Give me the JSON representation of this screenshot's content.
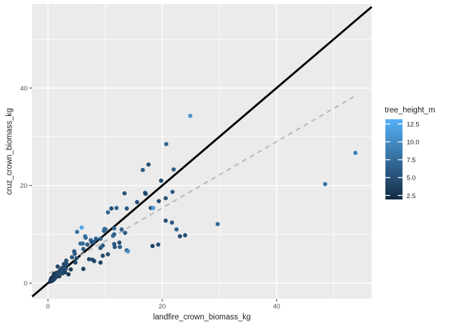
{
  "chart_data": {
    "type": "scatter",
    "title": "",
    "xlabel": "landfire_crown_biomass_kg",
    "ylabel": "cruz_crown_biomass_kg",
    "xlim": [
      -2.8,
      56.7
    ],
    "ylim": [
      -3.2,
      57.2
    ],
    "grid": "on",
    "legend_position": "right",
    "x_ticks": {
      "values": [
        0,
        20,
        40
      ],
      "labels": [
        "0",
        "20",
        "40"
      ],
      "minor": [
        10,
        30,
        50
      ]
    },
    "y_ticks": {
      "values": [
        0,
        20,
        40
      ],
      "labels": [
        "0",
        "20",
        "40"
      ],
      "minor": [
        10,
        30,
        50
      ]
    },
    "theme": {
      "panel_bg": "#EBEBEB",
      "grid_color": "#FFFFFF",
      "tick_label_color": "#4D4D4D",
      "tick_mark_color": "#333333"
    },
    "color_scale": {
      "label": "tree_height_m",
      "low": "#132B43",
      "high": "#56B1F7",
      "domain": [
        1.95,
        13.15
      ],
      "ticks": [
        {
          "value": 12.5,
          "label": "12.5"
        },
        {
          "value": 10.0,
          "label": "10.0"
        },
        {
          "value": 7.5,
          "label": "7.5"
        },
        {
          "value": 5.0,
          "label": "5.0"
        },
        {
          "value": 2.5,
          "label": "2.5"
        }
      ]
    },
    "lines": [
      {
        "name": "one-to-one line",
        "slope": 1,
        "intercept": 0,
        "style": "solid",
        "color": "#000000",
        "width": 3
      },
      {
        "name": "linear fit",
        "slope": 0.68,
        "intercept": 1.8,
        "style": "dashed",
        "color": "#BDBDBD",
        "width": 2.4,
        "x_range": [
          0.3,
          53.5
        ]
      }
    ],
    "points_format": [
      "landfire_crown_biomass_kg",
      "cruz_crown_biomass_kg",
      "tree_height_m"
    ],
    "points": [
      [
        0.4,
        0.3,
        2.5
      ],
      [
        0.5,
        0.7,
        2.8
      ],
      [
        0.6,
        0.4,
        3
      ],
      [
        0.6,
        1,
        2.6
      ],
      [
        0.7,
        0.9,
        2.6
      ],
      [
        0.8,
        0.5,
        3.2
      ],
      [
        0.8,
        1.2,
        2.9
      ],
      [
        0.9,
        0.7,
        3.4
      ],
      [
        0.9,
        1.3,
        3
      ],
      [
        1,
        1,
        3.1
      ],
      [
        1,
        1.5,
        2.7
      ],
      [
        1.1,
        0.8,
        3.6
      ],
      [
        1.1,
        1.9,
        2.8
      ],
      [
        1.2,
        1.3,
        3.3
      ],
      [
        1.2,
        1.8,
        2.9
      ],
      [
        1.3,
        1.1,
        3.8
      ],
      [
        1.4,
        1.6,
        3.5
      ],
      [
        1.5,
        1.3,
        4
      ],
      [
        1.5,
        2.1,
        3.2
      ],
      [
        1.6,
        1.8,
        3.7
      ],
      [
        1.7,
        1.5,
        4.2
      ],
      [
        1.7,
        3.4,
        4.5
      ],
      [
        1.8,
        2.2,
        3.9
      ],
      [
        1.9,
        1.7,
        4.4
      ],
      [
        2,
        1.4,
        3.6
      ],
      [
        2,
        2.4,
        4.1
      ],
      [
        2.1,
        2,
        4.6
      ],
      [
        2.2,
        2.7,
        4.3
      ],
      [
        2.4,
        2.3,
        4.8
      ],
      [
        2.4,
        2.9,
        4
      ],
      [
        2.5,
        3.1,
        4.5
      ],
      [
        2.6,
        2,
        4.2
      ],
      [
        2.7,
        2.6,
        5
      ],
      [
        2.8,
        3.9,
        4.4
      ],
      [
        2.9,
        3.4,
        4.7
      ],
      [
        3,
        2.2,
        4
      ],
      [
        3.1,
        2.9,
        5.2
      ],
      [
        3.2,
        4.6,
        5
      ],
      [
        3.3,
        3.8,
        4.9
      ],
      [
        3.6,
        1.8,
        3
      ],
      [
        4,
        2.8,
        3.5
      ],
      [
        4.2,
        5.3,
        5.5
      ],
      [
        4.6,
        6.5,
        5.5
      ],
      [
        4.7,
        6,
        6
      ],
      [
        4.8,
        4.2,
        4.5
      ],
      [
        5,
        5.1,
        5
      ],
      [
        5.1,
        10.5,
        8
      ],
      [
        5.7,
        8.1,
        7
      ],
      [
        5.9,
        11.4,
        12.5
      ],
      [
        6.1,
        8.1,
        7.5
      ],
      [
        6.2,
        2.9,
        3.5
      ],
      [
        6.2,
        7,
        6
      ],
      [
        6.5,
        9.6,
        8.5
      ],
      [
        6.6,
        9.3,
        7
      ],
      [
        6.9,
        7.9,
        6
      ],
      [
        7.2,
        4.9,
        4.5
      ],
      [
        7.5,
        8.8,
        6.5
      ],
      [
        7.7,
        8.3,
        6
      ],
      [
        7.8,
        4.8,
        5
      ],
      [
        8,
        8.4,
        5.5
      ],
      [
        8.1,
        4.5,
        4.5
      ],
      [
        8.4,
        9.1,
        6.5
      ],
      [
        9.2,
        4.2,
        4
      ],
      [
        9.2,
        7.2,
        5.5
      ],
      [
        9.2,
        9.1,
        6
      ],
      [
        9.6,
        5.6,
        4.5
      ],
      [
        9.6,
        7.7,
        6
      ],
      [
        9.8,
        10.7,
        7
      ],
      [
        9.9,
        11.1,
        8
      ],
      [
        10.1,
        11,
        7.5
      ],
      [
        10.5,
        5.9,
        5
      ],
      [
        10.5,
        14.5,
        7
      ],
      [
        11.1,
        15.3,
        5
      ],
      [
        11.4,
        9.7,
        7
      ],
      [
        11.6,
        8,
        5.5
      ],
      [
        11.6,
        10,
        6.5
      ],
      [
        11.6,
        11.2,
        7
      ],
      [
        11.7,
        7.4,
        5.5
      ],
      [
        12,
        15.4,
        6.5
      ],
      [
        12.5,
        8.3,
        5
      ],
      [
        12.6,
        7.4,
        6
      ],
      [
        12.9,
        11,
        6.5
      ],
      [
        13.4,
        18.4,
        5.5
      ],
      [
        13.5,
        10.3,
        6
      ],
      [
        13.8,
        6.7,
        5
      ],
      [
        13.8,
        15.3,
        6
      ],
      [
        14,
        6.5,
        10.5
      ],
      [
        15.6,
        16.6,
        5
      ],
      [
        16.6,
        23.2,
        6
      ],
      [
        17,
        18.5,
        6
      ],
      [
        17.1,
        18.3,
        4.5
      ],
      [
        17.6,
        24.3,
        5
      ],
      [
        18,
        15.4,
        5
      ],
      [
        18.4,
        15.4,
        11
      ],
      [
        18.3,
        7.6,
        4
      ],
      [
        19.3,
        7.9,
        5
      ],
      [
        19.4,
        16.8,
        5
      ],
      [
        19.8,
        21,
        4.5
      ],
      [
        20.6,
        12.8,
        5.5
      ],
      [
        20.6,
        17.4,
        5.5
      ],
      [
        20.7,
        28.5,
        7
      ],
      [
        21.7,
        12.4,
        6
      ],
      [
        21.8,
        18.7,
        6
      ],
      [
        22,
        23.3,
        6.5
      ],
      [
        22.5,
        11,
        6.5
      ],
      [
        23.1,
        9.6,
        4.5
      ],
      [
        24,
        9.8,
        5
      ],
      [
        24.9,
        34.3,
        10.5
      ],
      [
        29.7,
        12.1,
        7.5
      ],
      [
        48.5,
        20.3,
        8
      ],
      [
        53.8,
        26.7,
        9
      ]
    ]
  }
}
